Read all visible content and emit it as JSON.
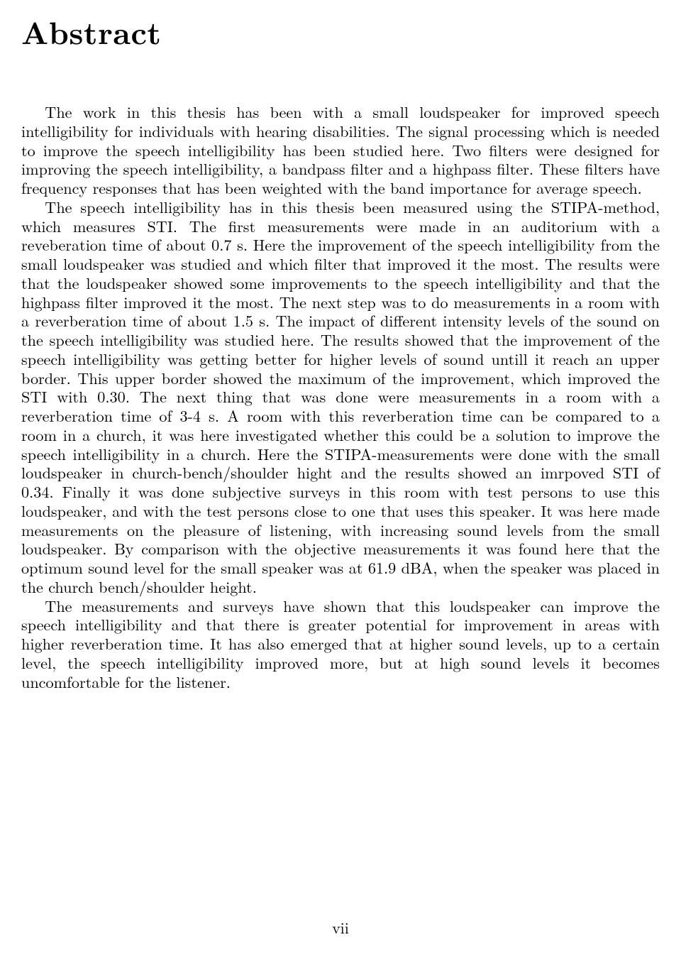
{
  "title": "Abstract",
  "paragraphs": {
    "p1": "The work in this thesis has been with a small loudspeaker for improved speech intelligibility for individuals with hearing disabilities. The signal processing which is needed to improve the speech intelligibility has been studied here. Two filters were designed for improving the speech intelligibility, a bandpass filter and a highpass filter. These filters have frequency responses that has been weighted with the band importance for average speech.",
    "p2": "The speech intelligibility has in this thesis been measured using the STIPA-method, which measures STI. The first measurements were made in an auditorium with a reveberation time of about 0.7 s. Here the improvement of the speech intelligibility from the small loudspeaker was studied and which filter that improved it the most. The results were that the loudspeaker showed some improvements to the speech intelligibility and that the highpass filter improved it the most. The next step was to do measurements in a room with a reverberation time of about 1.5 s. The impact of different intensity levels of the sound on the speech intelligibility was studied here. The results showed that the improvement of the speech intelligibility was getting better for higher levels of sound untill it reach an upper border. This upper border showed the maximum of the improvement, which improved the STI with 0.30. The next thing that was done were measurements in a room with a reverberation time of 3-4 s. A room with this reverberation time can be compared to a room in a church, it was here investigated whether this could be a solution to improve the speech intelligibility in a church. Here the STIPA-measurements were done with the small loudspeaker in church-bench/shoulder hight and the results showed an imrpoved STI of 0.34. Finally it was done subjective surveys in this room with test persons to use this loudspeaker, and with the test persons close to one that uses this speaker. It was here made measurements on the pleasure of listening, with increasing sound levels from the small loudspeaker. By comparison with the objective measurements it was found here that the optimum sound level for the small speaker was at 61.9 dBA, when the speaker was placed in the church bench/shoulder height.",
    "p3": "The measurements and surveys have shown that this loudspeaker can improve the speech intelligibility and that there is greater potential for improvement in areas with higher reverberation time. It has also emerged that at higher sound levels, up to a certain level, the speech intelligibility improved more, but at high sound levels it becomes uncomfortable for the listener."
  },
  "page_number": "vii"
}
